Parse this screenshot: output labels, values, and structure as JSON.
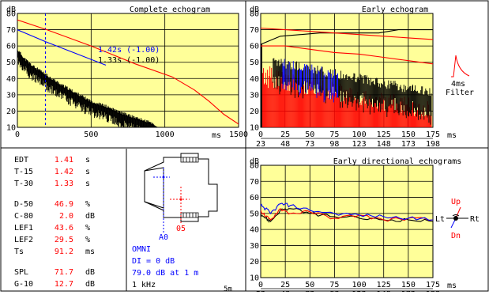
{
  "colors": {
    "plot_bg": "#ffff99",
    "grid": "#000000",
    "black_trace": "#000000",
    "red_trace": "#ff0000",
    "blue_trace": "#0000ff",
    "value_red": "#ff0000",
    "value_blue": "#0000ff"
  },
  "chart_data": [
    {
      "type": "line",
      "title": "Complete echogram",
      "ylabel": "dB",
      "xlabel": "ms",
      "ylim": [
        10,
        80
      ],
      "xlim": [
        0,
        1500
      ],
      "y_ticks": [
        "80",
        "70",
        "60",
        "50",
        "40",
        "30",
        "20",
        "10"
      ],
      "x_ticks": [
        "0",
        "500",
        "1000",
        "1500"
      ],
      "grid": true,
      "marker_x": 190,
      "annotations": [
        {
          "text": "1.42s (-1.00)",
          "color": "blue"
        },
        {
          "text": "1.33s (-1.00)",
          "color": "black"
        }
      ],
      "series": [
        {
          "color": "blue",
          "x": [
            0,
            190,
            600
          ],
          "y": [
            70.0,
            62.7,
            48.2
          ]
        },
        {
          "color": "red",
          "x": [
            0,
            200,
            500,
            800,
            1050,
            1200,
            1300,
            1400,
            1500
          ],
          "y": [
            76,
            70,
            60,
            49,
            41,
            33,
            26,
            18,
            12
          ]
        },
        {
          "color": "black",
          "x": [
            0,
            50,
            100,
            200,
            300,
            400,
            500,
            600,
            700,
            800,
            900,
            950
          ],
          "y": [
            57,
            51,
            47,
            41,
            35,
            30,
            25,
            22,
            18,
            15,
            12,
            10
          ]
        }
      ]
    },
    {
      "type": "line",
      "title": "Early echogram",
      "ylabel": "dB",
      "xlabel": "ms",
      "ylim": [
        10,
        80
      ],
      "xlim": [
        0,
        175
      ],
      "y_ticks": [
        "80",
        "70",
        "60",
        "50",
        "40",
        "30",
        "20",
        "10"
      ],
      "x_ticks": [
        "0",
        "25",
        "50",
        "75",
        "100",
        "125",
        "150",
        "175"
      ],
      "x_ticks_secondary": [
        "23",
        "48",
        "73",
        "98",
        "123",
        "148",
        "173",
        "198"
      ],
      "grid": true,
      "filter_label": [
        "4ms",
        "Filter"
      ],
      "series": [
        {
          "color": "black",
          "x": [
            0,
            20,
            60,
            120,
            140,
            175
          ],
          "y": [
            61,
            66,
            68,
            68,
            70,
            70
          ]
        },
        {
          "color": "red",
          "x": [
            0,
            25,
            50,
            75,
            100,
            125,
            150,
            175
          ],
          "y": [
            71,
            70,
            69,
            68,
            67,
            66,
            65,
            64
          ]
        },
        {
          "color": "red",
          "x": [
            0,
            25,
            50,
            75,
            100,
            125,
            150,
            175
          ],
          "y": [
            60,
            60,
            58,
            56,
            55,
            53,
            51,
            49
          ]
        }
      ]
    },
    {
      "type": "line",
      "title": "Early directional echograms",
      "ylabel": "dB",
      "xlabel": "ms",
      "ylim": [
        10,
        80
      ],
      "xlim": [
        0,
        175
      ],
      "y_ticks": [
        "80",
        "70",
        "60",
        "50",
        "40",
        "30",
        "20",
        "10"
      ],
      "x_ticks": [
        "0",
        "25",
        "50",
        "75",
        "100",
        "125",
        "150",
        "175"
      ],
      "x_ticks_secondary": [
        "23",
        "48",
        "73",
        "98",
        "123",
        "148",
        "173",
        "198"
      ],
      "grid": true,
      "direction_labels": {
        "up": "Up",
        "down": "Dn",
        "left": "Lt",
        "right": "Rt"
      },
      "series": [
        {
          "color": "black",
          "x": [
            0,
            5,
            10,
            20,
            30,
            50,
            75,
            100,
            125,
            150,
            175
          ],
          "y": [
            50,
            47,
            45,
            52,
            53,
            50,
            48,
            47,
            46,
            46,
            45
          ]
        },
        {
          "color": "red",
          "x": [
            0,
            5,
            10,
            20,
            30,
            50,
            75,
            100,
            125,
            150,
            175
          ],
          "y": [
            52,
            48,
            46,
            53,
            50,
            51,
            47,
            49,
            46,
            47,
            46
          ]
        },
        {
          "color": "blue",
          "x": [
            0,
            5,
            10,
            20,
            30,
            50,
            75,
            100,
            125,
            150,
            175
          ],
          "y": [
            55,
            53,
            50,
            56,
            55,
            52,
            50,
            49,
            48,
            47,
            46
          ]
        }
      ]
    }
  ],
  "params": [
    {
      "name": "EDT",
      "value": "1.41",
      "unit": "s"
    },
    {
      "name": "T-15",
      "value": "1.42",
      "unit": "s"
    },
    {
      "name": "T-30",
      "value": "1.33",
      "unit": "s"
    },
    {
      "name": "D-50",
      "value": "46.9",
      "unit": "%"
    },
    {
      "name": "C-80",
      "value": "2.0",
      "unit": "dB"
    },
    {
      "name": "LEF1",
      "value": "43.6",
      "unit": "%"
    },
    {
      "name": "LEF2",
      "value": "29.5",
      "unit": "%"
    },
    {
      "name": "Ts",
      "value": "91.2",
      "unit": "ms"
    },
    {
      "name": "SPL",
      "value": "71.7",
      "unit": "dB"
    },
    {
      "name": "G-10",
      "value": "12.7",
      "unit": "dB"
    }
  ],
  "floorplan": {
    "source_label": "A0",
    "receiver_label": "05",
    "directivity": "OMNI",
    "di": "DI = 0 dB",
    "level": "79.0 dB at 1 m",
    "band": "1 kHz",
    "scale": "5m"
  }
}
